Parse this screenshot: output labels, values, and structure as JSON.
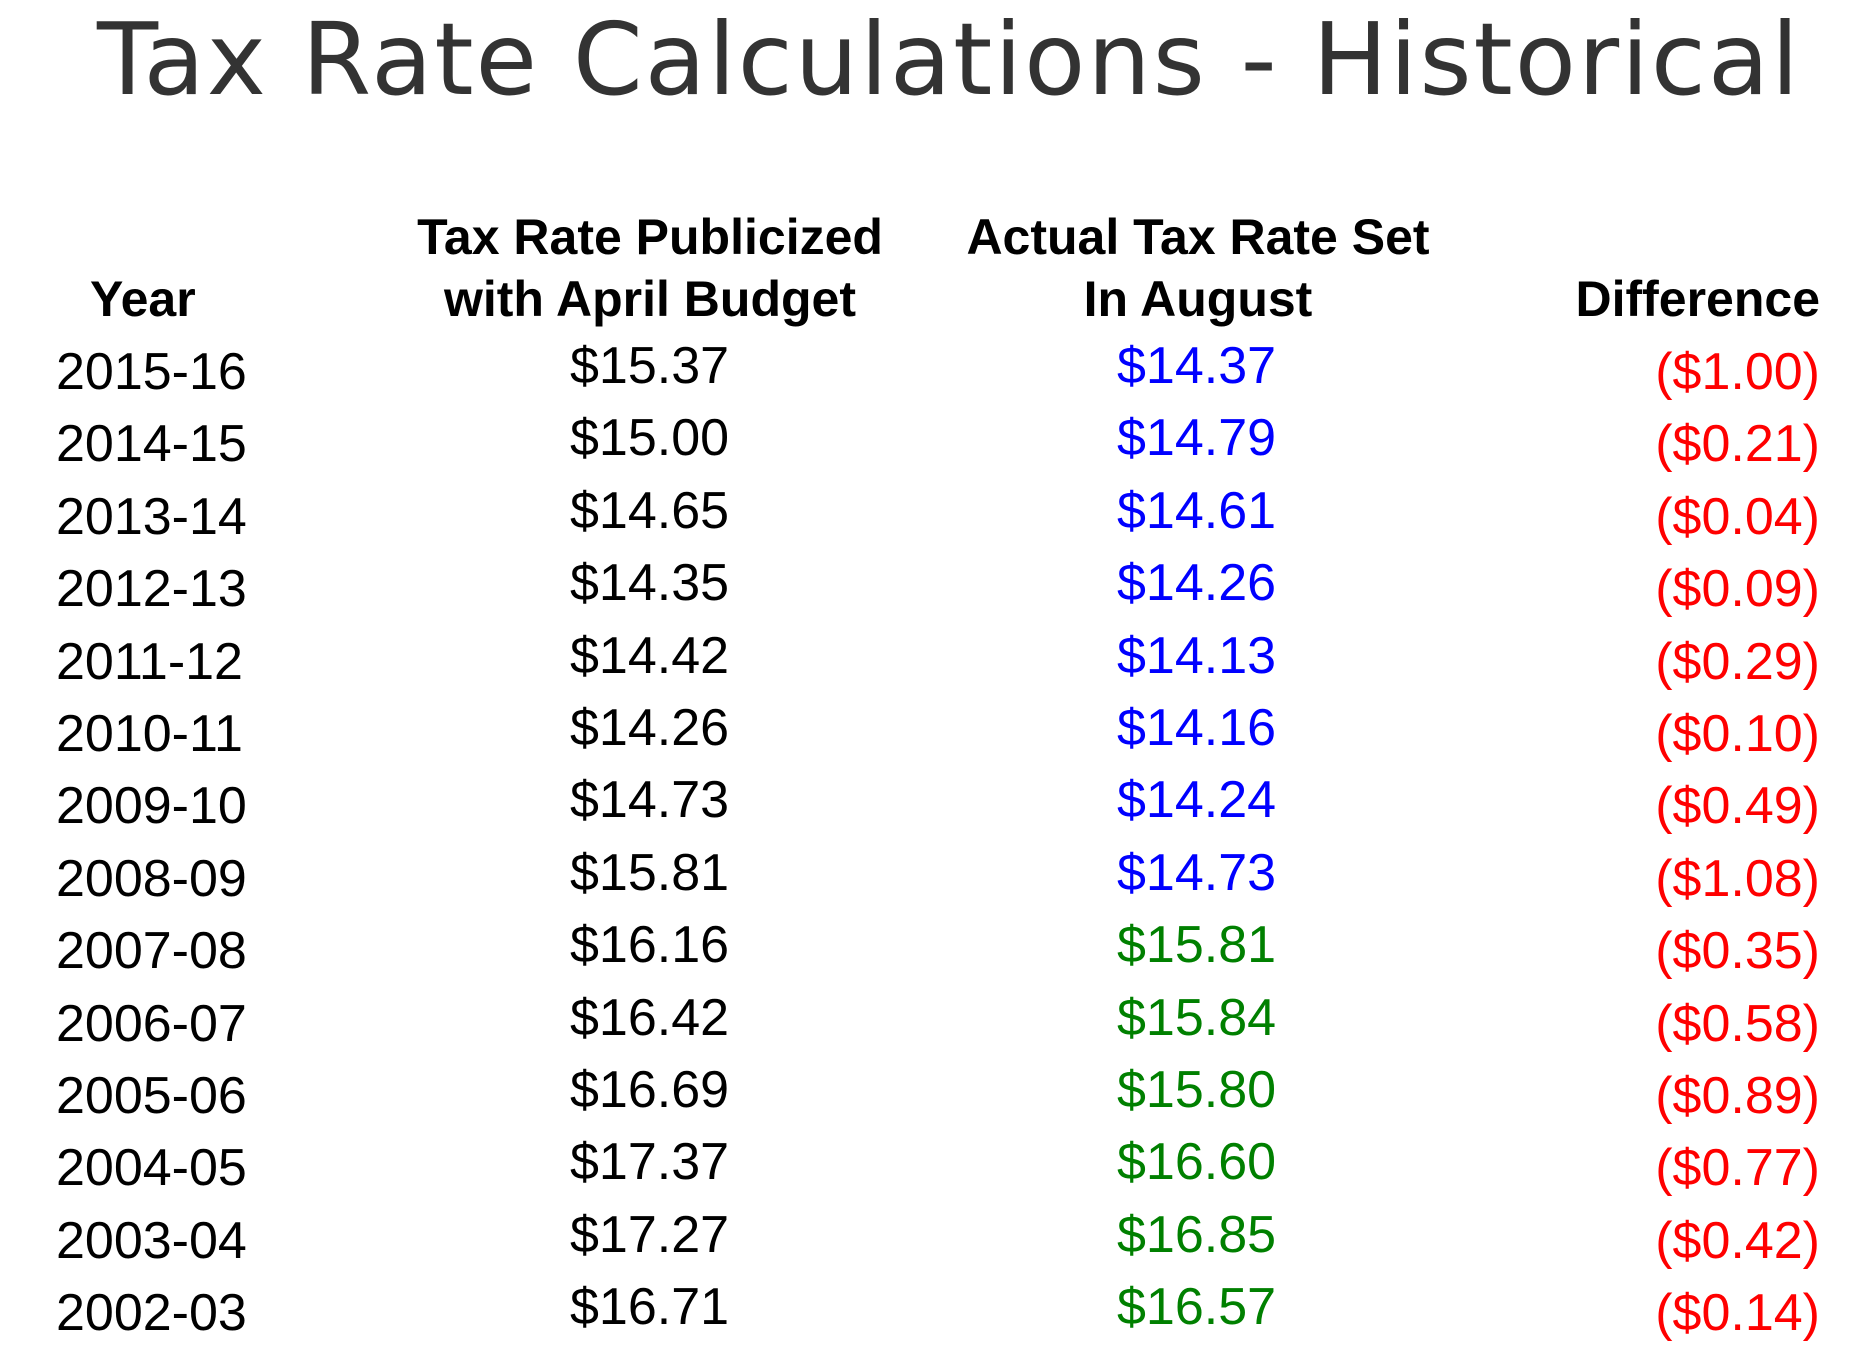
{
  "title": "Tax Rate Calculations - Historical",
  "colors": {
    "title": "#333333",
    "actual_blue": "#0000ff",
    "actual_green": "#008000",
    "difference_red": "#ff0000"
  },
  "headers": {
    "year": "Year",
    "publicized_line1": "Tax Rate Publicized",
    "publicized_line2": "with April Budget",
    "actual_line1": "Actual Tax Rate Set",
    "actual_line2": "In August",
    "difference": "Difference"
  },
  "rows": [
    {
      "year": "2015-16",
      "publicized": "$15.37",
      "actual": "$14.37",
      "actual_color": "#0000ff",
      "difference": "($1.00)"
    },
    {
      "year": "2014-15",
      "publicized": "$15.00",
      "actual": "$14.79",
      "actual_color": "#0000ff",
      "difference": "($0.21)"
    },
    {
      "year": "2013-14",
      "publicized": "$14.65",
      "actual": "$14.61",
      "actual_color": "#0000ff",
      "difference": "($0.04)"
    },
    {
      "year": "2012-13",
      "publicized": "$14.35",
      "actual": "$14.26",
      "actual_color": "#0000ff",
      "difference": "($0.09)"
    },
    {
      "year": "2011-12",
      "publicized": "$14.42",
      "actual": "$14.13",
      "actual_color": "#0000ff",
      "difference": "($0.29)"
    },
    {
      "year": "2010-11",
      "publicized": "$14.26",
      "actual": "$14.16",
      "actual_color": "#0000ff",
      "difference": "($0.10)"
    },
    {
      "year": "2009-10",
      "publicized": "$14.73",
      "actual": "$14.24",
      "actual_color": "#0000ff",
      "difference": "($0.49)"
    },
    {
      "year": "2008-09",
      "publicized": "$15.81",
      "actual": "$14.73",
      "actual_color": "#0000ff",
      "difference": "($1.08)"
    },
    {
      "year": "2007-08",
      "publicized": "$16.16",
      "actual": "$15.81",
      "actual_color": "#008000",
      "difference": "($0.35)"
    },
    {
      "year": "2006-07",
      "publicized": "$16.42",
      "actual": "$15.84",
      "actual_color": "#008000",
      "difference": "($0.58)"
    },
    {
      "year": "2005-06",
      "publicized": "$16.69",
      "actual": "$15.80",
      "actual_color": "#008000",
      "difference": "($0.89)"
    },
    {
      "year": "2004-05",
      "publicized": "$17.37",
      "actual": "$16.60",
      "actual_color": "#008000",
      "difference": "($0.77)"
    },
    {
      "year": "2003-04",
      "publicized": "$17.27",
      "actual": "$16.85",
      "actual_color": "#008000",
      "difference": "($0.42)"
    },
    {
      "year": "2002-03",
      "publicized": "$16.71",
      "actual": "$16.57",
      "actual_color": "#008000",
      "difference": "($0.14)"
    }
  ]
}
